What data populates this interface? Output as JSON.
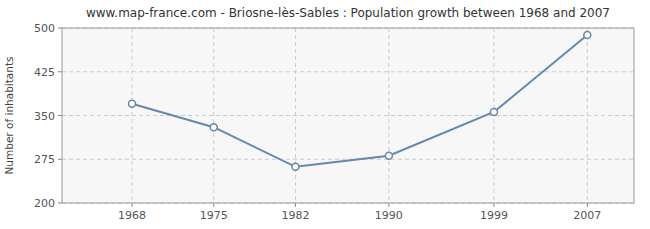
{
  "chart_data": {
    "type": "line",
    "title": "www.map-france.com - Briosne-lès-Sables : Population growth between 1968 and 2007",
    "x": [
      1968,
      1975,
      1982,
      1990,
      1999,
      2007
    ],
    "values": [
      370,
      330,
      262,
      281,
      356,
      488
    ],
    "y_label": "Number of inhabitants",
    "xlim": [
      1962,
      2011
    ],
    "xticks": [
      1968,
      1975,
      1982,
      1990,
      1999,
      2007
    ],
    "ylim": [
      200,
      500
    ],
    "yticks": [
      200,
      275,
      350,
      425,
      500
    ],
    "color": "#6688aa",
    "marker": "circle",
    "line_style": "solid",
    "grid": true
  }
}
